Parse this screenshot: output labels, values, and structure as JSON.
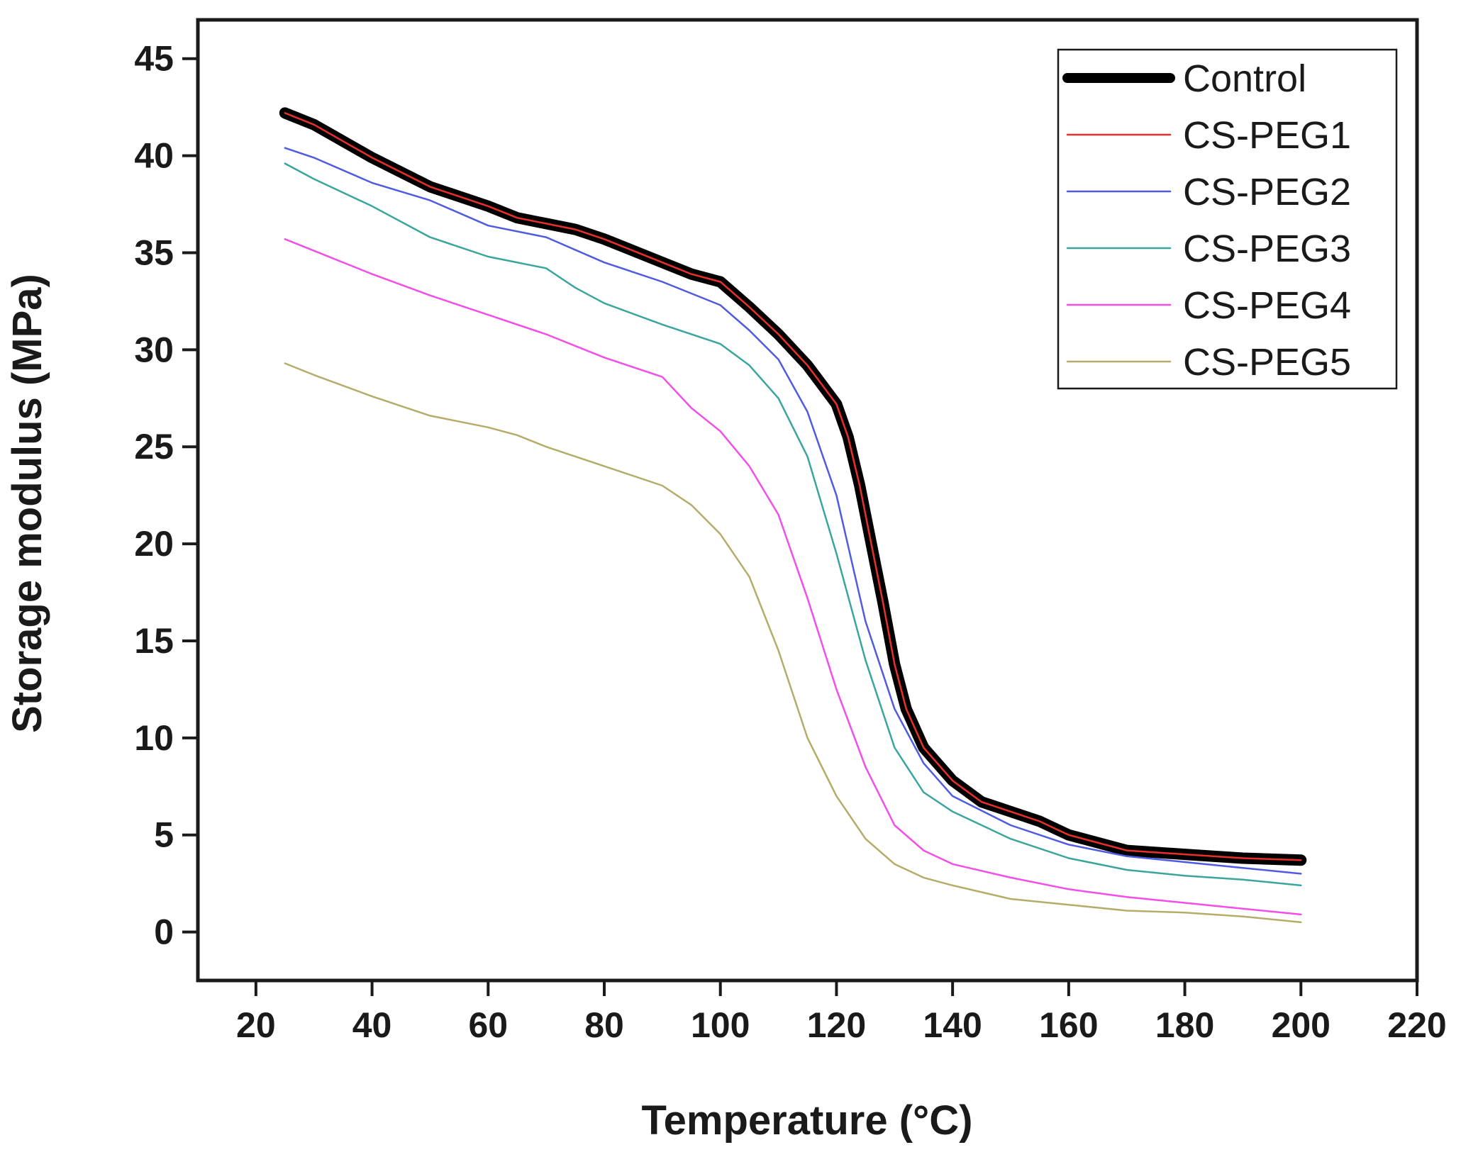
{
  "chart_data": {
    "type": "line",
    "xlabel": "Temperature",
    "xlabel_unit": "°C",
    "ylabel": "Storage modulus (MPa)",
    "xlim": [
      10,
      220
    ],
    "ylim": [
      -2.5,
      47
    ],
    "xticks": [
      20,
      40,
      60,
      80,
      100,
      120,
      140,
      160,
      180,
      200,
      220
    ],
    "yticks": [
      0,
      5,
      10,
      15,
      20,
      25,
      30,
      35,
      40,
      45
    ],
    "legend_position": "top-right",
    "series": [
      {
        "name": "Control",
        "color": "#000000",
        "style": "thick",
        "x": [
          25,
          30,
          40,
          50,
          60,
          65,
          70,
          75,
          80,
          85,
          90,
          95,
          100,
          105,
          110,
          115,
          120,
          122,
          124,
          126,
          128,
          130,
          132,
          135,
          140,
          145,
          150,
          155,
          160,
          170,
          180,
          190,
          200
        ],
        "y": [
          42.2,
          41.6,
          39.9,
          38.4,
          37.4,
          36.8,
          36.5,
          36.2,
          35.7,
          35.1,
          34.5,
          33.9,
          33.5,
          32.2,
          30.8,
          29.2,
          27.2,
          25.5,
          23.0,
          20.0,
          17.0,
          13.8,
          11.5,
          9.5,
          7.8,
          6.7,
          6.2,
          5.7,
          5.0,
          4.2,
          4.0,
          3.8,
          3.7
        ]
      },
      {
        "name": "CS-PEG1",
        "color": "#e8302b",
        "style": "thin",
        "x": [
          25,
          30,
          40,
          50,
          60,
          65,
          70,
          75,
          80,
          85,
          90,
          95,
          100,
          105,
          110,
          115,
          120,
          122,
          124,
          126,
          128,
          130,
          132,
          135,
          140,
          145,
          150,
          155,
          160,
          170,
          180,
          190,
          200
        ],
        "y": [
          42.2,
          41.6,
          39.9,
          38.4,
          37.4,
          36.8,
          36.5,
          36.2,
          35.7,
          35.1,
          34.5,
          33.9,
          33.5,
          32.2,
          30.8,
          29.2,
          27.2,
          25.5,
          23.0,
          20.0,
          17.0,
          13.8,
          11.5,
          9.5,
          7.8,
          6.7,
          6.2,
          5.7,
          5.0,
          4.2,
          4.0,
          3.8,
          3.7
        ]
      },
      {
        "name": "CS-PEG2",
        "color": "#4f5be0",
        "style": "thin",
        "x": [
          25,
          30,
          40,
          50,
          60,
          70,
          80,
          90,
          100,
          105,
          110,
          115,
          120,
          125,
          130,
          135,
          140,
          150,
          160,
          170,
          180,
          190,
          200
        ],
        "y": [
          40.4,
          39.9,
          38.6,
          37.7,
          36.4,
          35.8,
          34.5,
          33.5,
          32.3,
          31.0,
          29.5,
          26.8,
          22.5,
          16.0,
          11.5,
          8.7,
          7.0,
          5.5,
          4.5,
          3.9,
          3.6,
          3.3,
          3.0
        ]
      },
      {
        "name": "CS-PEG3",
        "color": "#3aa59d",
        "style": "thin",
        "x": [
          25,
          30,
          40,
          50,
          60,
          70,
          75,
          80,
          90,
          100,
          105,
          110,
          115,
          120,
          125,
          130,
          135,
          140,
          150,
          160,
          170,
          180,
          190,
          200
        ],
        "y": [
          39.6,
          38.8,
          37.4,
          35.8,
          34.8,
          34.2,
          33.2,
          32.4,
          31.3,
          30.3,
          29.2,
          27.5,
          24.5,
          19.5,
          14.0,
          9.5,
          7.2,
          6.2,
          4.8,
          3.8,
          3.2,
          2.9,
          2.7,
          2.4
        ]
      },
      {
        "name": "CS-PEG4",
        "color": "#f24ee8",
        "style": "thin",
        "x": [
          25,
          30,
          40,
          50,
          60,
          70,
          80,
          90,
          95,
          100,
          105,
          110,
          115,
          120,
          125,
          130,
          135,
          140,
          150,
          160,
          170,
          180,
          190,
          200
        ],
        "y": [
          35.7,
          35.1,
          33.9,
          32.8,
          31.8,
          30.8,
          29.6,
          28.6,
          27.0,
          25.8,
          24.0,
          21.5,
          17.2,
          12.5,
          8.5,
          5.5,
          4.2,
          3.5,
          2.8,
          2.2,
          1.8,
          1.5,
          1.2,
          0.9
        ]
      },
      {
        "name": "CS-PEG5",
        "color": "#b5ac6a",
        "style": "thin",
        "x": [
          25,
          30,
          40,
          50,
          60,
          65,
          70,
          80,
          90,
          95,
          100,
          105,
          110,
          115,
          120,
          125,
          130,
          135,
          140,
          150,
          160,
          170,
          180,
          190,
          200
        ],
        "y": [
          29.3,
          28.7,
          27.6,
          26.6,
          26.0,
          25.6,
          25.0,
          24.0,
          23.0,
          22.0,
          20.5,
          18.3,
          14.5,
          10.0,
          7.0,
          4.8,
          3.5,
          2.8,
          2.4,
          1.7,
          1.4,
          1.1,
          1.0,
          0.8,
          0.5
        ]
      }
    ]
  }
}
